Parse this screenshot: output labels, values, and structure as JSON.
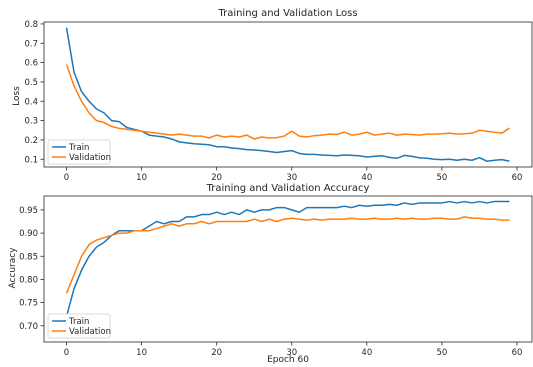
{
  "colors": {
    "train": "#1f77b4",
    "validation": "#ff7f0e"
  },
  "chart_data": [
    {
      "type": "line",
      "title": "Training and Validation Loss",
      "xlabel": "",
      "ylabel": "Loss",
      "xlim": [
        -3,
        62
      ],
      "ylim": [
        0.06,
        0.81
      ],
      "xticks": [
        0,
        10,
        20,
        30,
        40,
        50,
        60
      ],
      "yticks": [
        0.1,
        0.2,
        0.3,
        0.4,
        0.5,
        0.6,
        0.7,
        0.8
      ],
      "xtick_labels": [
        "0",
        "10",
        "20",
        "30",
        "40",
        "50",
        "60"
      ],
      "ytick_labels": [
        "0.1",
        "0.2",
        "0.3",
        "0.4",
        "0.5",
        "0.6",
        "0.7",
        "0.8"
      ],
      "legend_position": "lower-left",
      "grid": false,
      "series": [
        {
          "name": "Train",
          "color": "#1f77b4",
          "values": [
            0.78,
            0.55,
            0.45,
            0.4,
            0.36,
            0.34,
            0.3,
            0.295,
            0.265,
            0.255,
            0.245,
            0.225,
            0.22,
            0.215,
            0.205,
            0.19,
            0.185,
            0.18,
            0.178,
            0.175,
            0.165,
            0.165,
            0.158,
            0.155,
            0.15,
            0.148,
            0.145,
            0.14,
            0.135,
            0.14,
            0.145,
            0.13,
            0.125,
            0.125,
            0.122,
            0.12,
            0.118,
            0.122,
            0.12,
            0.118,
            0.112,
            0.115,
            0.118,
            0.11,
            0.105,
            0.12,
            0.115,
            0.108,
            0.105,
            0.1,
            0.098,
            0.1,
            0.095,
            0.1,
            0.095,
            0.108,
            0.09,
            0.095,
            0.098,
            0.09
          ]
        },
        {
          "name": "Validation",
          "color": "#ff7f0e",
          "values": [
            0.59,
            0.48,
            0.4,
            0.34,
            0.3,
            0.29,
            0.27,
            0.26,
            0.255,
            0.25,
            0.245,
            0.24,
            0.235,
            0.23,
            0.225,
            0.23,
            0.225,
            0.22,
            0.22,
            0.21,
            0.225,
            0.215,
            0.22,
            0.215,
            0.225,
            0.205,
            0.215,
            0.21,
            0.212,
            0.22,
            0.245,
            0.22,
            0.215,
            0.222,
            0.225,
            0.23,
            0.228,
            0.24,
            0.225,
            0.23,
            0.24,
            0.225,
            0.23,
            0.235,
            0.225,
            0.23,
            0.228,
            0.225,
            0.23,
            0.23,
            0.232,
            0.235,
            0.23,
            0.232,
            0.235,
            0.25,
            0.245,
            0.24,
            0.235,
            0.262
          ]
        }
      ]
    },
    {
      "type": "line",
      "title": "Training and Validation Accuracy",
      "xlabel": "Epoch 60",
      "ylabel": "Accuracy",
      "xlim": [
        -3,
        62
      ],
      "ylim": [
        0.665,
        0.98
      ],
      "xticks": [
        0,
        10,
        20,
        30,
        40,
        50,
        60
      ],
      "yticks": [
        0.7,
        0.75,
        0.8,
        0.85,
        0.9,
        0.95
      ],
      "xtick_labels": [
        "0",
        "10",
        "20",
        "30",
        "40",
        "50",
        "60"
      ],
      "ytick_labels": [
        "0.70",
        "0.75",
        "0.80",
        "0.85",
        "0.90",
        "0.95"
      ],
      "legend_position": "lower-left",
      "grid": false,
      "series": [
        {
          "name": "Train",
          "color": "#1f77b4",
          "values": [
            0.72,
            0.78,
            0.82,
            0.85,
            0.87,
            0.88,
            0.895,
            0.905,
            0.905,
            0.905,
            0.905,
            0.915,
            0.925,
            0.92,
            0.925,
            0.925,
            0.935,
            0.935,
            0.94,
            0.94,
            0.945,
            0.94,
            0.945,
            0.94,
            0.95,
            0.945,
            0.95,
            0.95,
            0.955,
            0.955,
            0.95,
            0.945,
            0.955,
            0.955,
            0.955,
            0.955,
            0.955,
            0.958,
            0.955,
            0.96,
            0.958,
            0.96,
            0.96,
            0.962,
            0.96,
            0.965,
            0.962,
            0.965,
            0.965,
            0.965,
            0.965,
            0.968,
            0.965,
            0.968,
            0.965,
            0.968,
            0.965,
            0.968,
            0.968,
            0.968
          ]
        },
        {
          "name": "Validation",
          "color": "#ff7f0e",
          "values": [
            0.77,
            0.81,
            0.85,
            0.875,
            0.885,
            0.89,
            0.895,
            0.9,
            0.9,
            0.905,
            0.905,
            0.905,
            0.91,
            0.915,
            0.92,
            0.915,
            0.92,
            0.92,
            0.925,
            0.92,
            0.925,
            0.925,
            0.925,
            0.925,
            0.925,
            0.93,
            0.925,
            0.93,
            0.925,
            0.93,
            0.932,
            0.93,
            0.928,
            0.93,
            0.928,
            0.93,
            0.93,
            0.93,
            0.932,
            0.93,
            0.93,
            0.932,
            0.93,
            0.93,
            0.932,
            0.93,
            0.932,
            0.93,
            0.93,
            0.932,
            0.932,
            0.93,
            0.93,
            0.935,
            0.932,
            0.932,
            0.93,
            0.93,
            0.928,
            0.928
          ]
        }
      ]
    }
  ]
}
